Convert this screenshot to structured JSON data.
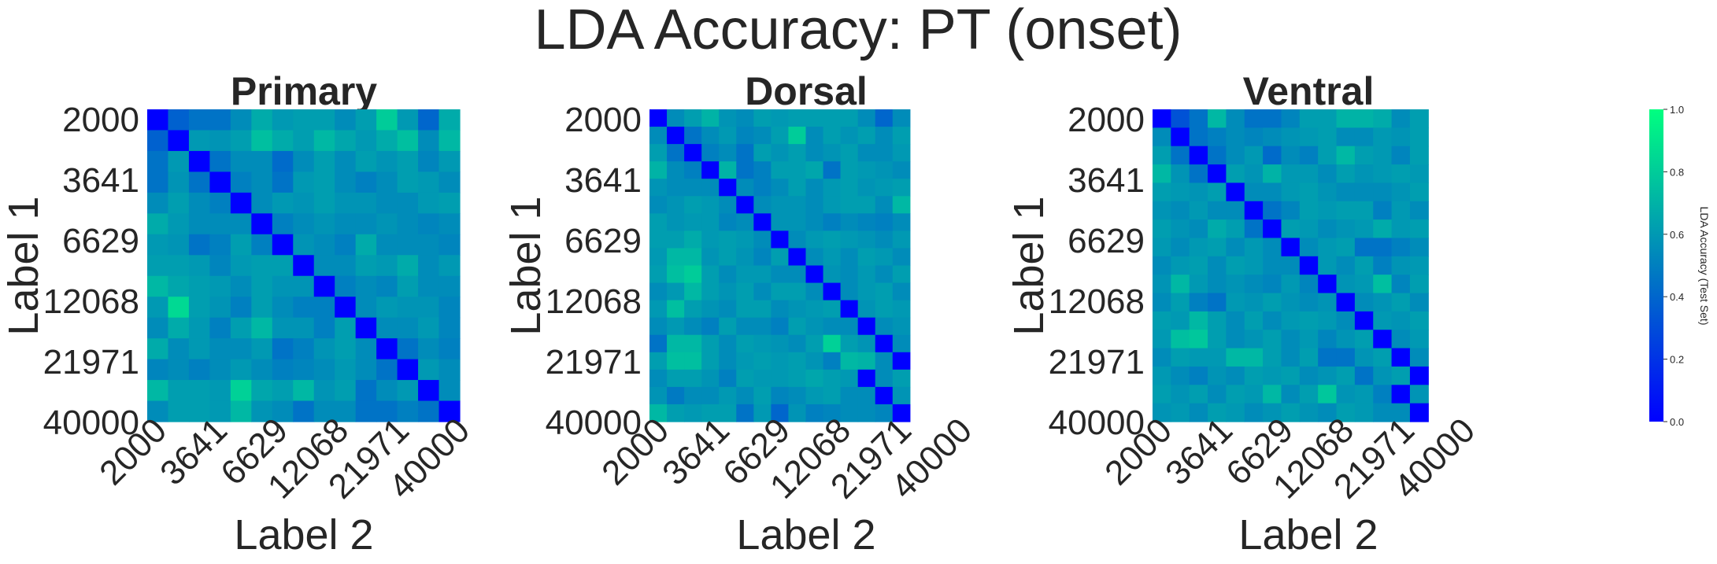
{
  "title": "LDA Accuracy: PT (onset)",
  "colors": {
    "low": "#0000ff",
    "high": "#00ff80"
  },
  "chart_data": [
    {
      "type": "heatmap",
      "title": "Primary",
      "xlabel": "Label 2",
      "ylabel": "Label 1",
      "tick_labels": [
        "2000",
        "3641",
        "6629",
        "12068",
        "21971",
        "40000"
      ],
      "vmin": 0.0,
      "vmax": 1.0,
      "values": [
        [
          0.0,
          0.38,
          0.45,
          0.45,
          0.55,
          0.67,
          0.6,
          0.62,
          0.62,
          0.55,
          0.62,
          0.8,
          0.6,
          0.4,
          0.67
        ],
        [
          0.38,
          0.0,
          0.6,
          0.58,
          0.62,
          0.75,
          0.67,
          0.62,
          0.72,
          0.65,
          0.6,
          0.67,
          0.75,
          0.55,
          0.72
        ],
        [
          0.45,
          0.6,
          0.0,
          0.45,
          0.55,
          0.55,
          0.42,
          0.55,
          0.62,
          0.55,
          0.62,
          0.58,
          0.62,
          0.52,
          0.6
        ],
        [
          0.45,
          0.58,
          0.45,
          0.0,
          0.5,
          0.55,
          0.45,
          0.6,
          0.62,
          0.55,
          0.5,
          0.55,
          0.62,
          0.6,
          0.55
        ],
        [
          0.55,
          0.62,
          0.55,
          0.5,
          0.0,
          0.55,
          0.6,
          0.58,
          0.62,
          0.58,
          0.58,
          0.55,
          0.55,
          0.6,
          0.62
        ],
        [
          0.67,
          0.6,
          0.55,
          0.55,
          0.55,
          0.0,
          0.5,
          0.55,
          0.58,
          0.55,
          0.55,
          0.58,
          0.55,
          0.52,
          0.55
        ],
        [
          0.6,
          0.58,
          0.45,
          0.5,
          0.62,
          0.5,
          0.0,
          0.58,
          0.55,
          0.5,
          0.67,
          0.55,
          0.55,
          0.55,
          0.52
        ],
        [
          0.62,
          0.62,
          0.6,
          0.52,
          0.6,
          0.62,
          0.62,
          0.0,
          0.55,
          0.55,
          0.62,
          0.6,
          0.67,
          0.55,
          0.6
        ],
        [
          0.72,
          0.65,
          0.62,
          0.6,
          0.55,
          0.62,
          0.58,
          0.58,
          0.0,
          0.5,
          0.55,
          0.52,
          0.62,
          0.55,
          0.55
        ],
        [
          0.6,
          0.85,
          0.62,
          0.58,
          0.5,
          0.62,
          0.55,
          0.5,
          0.5,
          0.0,
          0.55,
          0.6,
          0.58,
          0.58,
          0.52
        ],
        [
          0.55,
          0.67,
          0.6,
          0.5,
          0.62,
          0.72,
          0.58,
          0.58,
          0.5,
          0.62,
          0.0,
          0.55,
          0.55,
          0.6,
          0.52
        ],
        [
          0.67,
          0.55,
          0.6,
          0.55,
          0.55,
          0.6,
          0.45,
          0.5,
          0.58,
          0.62,
          0.55,
          0.0,
          0.45,
          0.55,
          0.5
        ],
        [
          0.52,
          0.55,
          0.5,
          0.55,
          0.6,
          0.55,
          0.5,
          0.52,
          0.55,
          0.6,
          0.55,
          0.45,
          0.0,
          0.6,
          0.55
        ],
        [
          0.72,
          0.62,
          0.62,
          0.6,
          0.82,
          0.65,
          0.62,
          0.72,
          0.58,
          0.62,
          0.45,
          0.55,
          0.6,
          0.0,
          0.55
        ],
        [
          0.55,
          0.62,
          0.62,
          0.6,
          0.72,
          0.58,
          0.55,
          0.45,
          0.55,
          0.55,
          0.45,
          0.45,
          0.5,
          0.45,
          0.0
        ]
      ]
    },
    {
      "type": "heatmap",
      "title": "Dorsal",
      "xlabel": "Label 2",
      "ylabel": "Label 1",
      "tick_labels": [
        "2000",
        "3641",
        "6629",
        "12068",
        "21971",
        "40000"
      ],
      "vmin": 0.0,
      "vmax": 1.0,
      "values": [
        [
          0.0,
          0.55,
          0.62,
          0.7,
          0.58,
          0.55,
          0.62,
          0.6,
          0.62,
          0.62,
          0.62,
          0.62,
          0.55,
          0.4,
          0.55
        ],
        [
          0.55,
          0.0,
          0.45,
          0.55,
          0.6,
          0.52,
          0.55,
          0.62,
          0.8,
          0.55,
          0.62,
          0.58,
          0.62,
          0.55,
          0.62
        ],
        [
          0.62,
          0.45,
          0.0,
          0.5,
          0.55,
          0.45,
          0.62,
          0.58,
          0.62,
          0.55,
          0.58,
          0.62,
          0.55,
          0.55,
          0.6
        ],
        [
          0.7,
          0.55,
          0.5,
          0.0,
          0.7,
          0.45,
          0.5,
          0.62,
          0.62,
          0.65,
          0.45,
          0.62,
          0.6,
          0.58,
          0.55
        ],
        [
          0.58,
          0.55,
          0.55,
          0.55,
          0.0,
          0.55,
          0.5,
          0.55,
          0.62,
          0.55,
          0.6,
          0.62,
          0.58,
          0.6,
          0.62
        ],
        [
          0.55,
          0.58,
          0.62,
          0.6,
          0.55,
          0.0,
          0.55,
          0.58,
          0.58,
          0.55,
          0.6,
          0.62,
          0.62,
          0.55,
          0.72
        ],
        [
          0.62,
          0.58,
          0.6,
          0.6,
          0.52,
          0.55,
          0.0,
          0.58,
          0.58,
          0.55,
          0.5,
          0.55,
          0.52,
          0.5,
          0.55
        ],
        [
          0.62,
          0.62,
          0.67,
          0.6,
          0.62,
          0.6,
          0.55,
          0.0,
          0.55,
          0.6,
          0.62,
          0.6,
          0.58,
          0.55,
          0.6
        ],
        [
          0.6,
          0.72,
          0.72,
          0.58,
          0.62,
          0.58,
          0.52,
          0.62,
          0.0,
          0.55,
          0.6,
          0.55,
          0.62,
          0.6,
          0.55
        ],
        [
          0.62,
          0.75,
          0.8,
          0.62,
          0.55,
          0.6,
          0.6,
          0.55,
          0.55,
          0.0,
          0.58,
          0.55,
          0.6,
          0.55,
          0.62
        ],
        [
          0.55,
          0.6,
          0.72,
          0.62,
          0.58,
          0.62,
          0.55,
          0.62,
          0.62,
          0.55,
          0.0,
          0.55,
          0.6,
          0.62,
          0.55
        ],
        [
          0.6,
          0.75,
          0.62,
          0.58,
          0.55,
          0.62,
          0.62,
          0.55,
          0.58,
          0.6,
          0.62,
          0.0,
          0.58,
          0.62,
          0.6
        ],
        [
          0.55,
          0.6,
          0.55,
          0.5,
          0.62,
          0.55,
          0.55,
          0.5,
          0.62,
          0.58,
          0.55,
          0.55,
          0.0,
          0.55,
          0.58
        ],
        [
          0.45,
          0.72,
          0.72,
          0.62,
          0.55,
          0.62,
          0.6,
          0.58,
          0.55,
          0.62,
          0.82,
          0.62,
          0.58,
          0.0,
          0.55
        ],
        [
          0.62,
          0.75,
          0.75,
          0.62,
          0.55,
          0.6,
          0.62,
          0.6,
          0.62,
          0.58,
          0.5,
          0.72,
          0.7,
          0.55,
          0.0
        ],
        [
          0.55,
          0.62,
          0.62,
          0.58,
          0.5,
          0.62,
          0.6,
          0.6,
          0.62,
          0.65,
          0.62,
          0.6,
          0.0,
          0.55,
          0.62
        ],
        [
          0.58,
          0.48,
          0.55,
          0.55,
          0.6,
          0.55,
          0.62,
          0.52,
          0.55,
          0.6,
          0.62,
          0.55,
          0.55,
          0.0,
          0.58
        ],
        [
          0.72,
          0.62,
          0.6,
          0.62,
          0.62,
          0.45,
          0.6,
          0.4,
          0.58,
          0.5,
          0.52,
          0.55,
          0.55,
          0.52,
          0.0
        ]
      ]
    },
    {
      "type": "heatmap",
      "title": "Ventral",
      "xlabel": "Label 2",
      "ylabel": "Label 1",
      "tick_labels": [
        "2000",
        "3641",
        "6629",
        "12068",
        "21971",
        "40000"
      ],
      "vmin": 0.0,
      "vmax": 1.0,
      "values": [
        [
          0.0,
          0.32,
          0.45,
          0.72,
          0.55,
          0.45,
          0.45,
          0.52,
          0.62,
          0.62,
          0.7,
          0.7,
          0.67,
          0.55,
          0.62
        ],
        [
          0.55,
          0.0,
          0.45,
          0.5,
          0.55,
          0.52,
          0.55,
          0.58,
          0.6,
          0.62,
          0.55,
          0.55,
          0.6,
          0.58,
          0.62
        ],
        [
          0.62,
          0.45,
          0.0,
          0.45,
          0.55,
          0.6,
          0.42,
          0.55,
          0.5,
          0.62,
          0.72,
          0.62,
          0.6,
          0.52,
          0.62
        ],
        [
          0.72,
          0.58,
          0.45,
          0.0,
          0.62,
          0.58,
          0.7,
          0.6,
          0.6,
          0.55,
          0.62,
          0.58,
          0.6,
          0.62,
          0.6
        ],
        [
          0.62,
          0.6,
          0.58,
          0.62,
          0.0,
          0.55,
          0.55,
          0.6,
          0.62,
          0.58,
          0.55,
          0.55,
          0.55,
          0.58,
          0.62
        ],
        [
          0.58,
          0.55,
          0.6,
          0.55,
          0.55,
          0.0,
          0.45,
          0.52,
          0.62,
          0.6,
          0.62,
          0.62,
          0.5,
          0.6,
          0.55
        ],
        [
          0.62,
          0.58,
          0.55,
          0.67,
          0.62,
          0.45,
          0.0,
          0.62,
          0.6,
          0.55,
          0.58,
          0.6,
          0.67,
          0.6,
          0.62
        ],
        [
          0.6,
          0.55,
          0.6,
          0.62,
          0.55,
          0.6,
          0.55,
          0.0,
          0.55,
          0.6,
          0.62,
          0.45,
          0.45,
          0.5,
          0.55
        ],
        [
          0.55,
          0.6,
          0.62,
          0.55,
          0.62,
          0.6,
          0.55,
          0.55,
          0.0,
          0.6,
          0.55,
          0.62,
          0.5,
          0.58,
          0.6
        ],
        [
          0.58,
          0.72,
          0.6,
          0.55,
          0.58,
          0.55,
          0.52,
          0.6,
          0.52,
          0.0,
          0.58,
          0.6,
          0.75,
          0.52,
          0.62
        ],
        [
          0.55,
          0.62,
          0.5,
          0.45,
          0.6,
          0.58,
          0.62,
          0.58,
          0.55,
          0.58,
          0.0,
          0.55,
          0.58,
          0.62,
          0.55
        ],
        [
          0.62,
          0.6,
          0.72,
          0.62,
          0.55,
          0.62,
          0.55,
          0.6,
          0.62,
          0.6,
          0.55,
          0.0,
          0.6,
          0.58,
          0.62
        ],
        [
          0.6,
          0.75,
          0.78,
          0.62,
          0.55,
          0.58,
          0.62,
          0.55,
          0.6,
          0.52,
          0.58,
          0.62,
          0.0,
          0.55,
          0.6
        ],
        [
          0.55,
          0.62,
          0.6,
          0.6,
          0.72,
          0.72,
          0.62,
          0.55,
          0.62,
          0.45,
          0.45,
          0.58,
          0.62,
          0.0,
          0.55
        ],
        [
          0.6,
          0.55,
          0.5,
          0.58,
          0.55,
          0.62,
          0.6,
          0.62,
          0.55,
          0.58,
          0.62,
          0.45,
          0.58,
          0.62,
          0.0
        ],
        [
          0.62,
          0.58,
          0.62,
          0.55,
          0.62,
          0.6,
          0.72,
          0.55,
          0.62,
          0.78,
          0.58,
          0.6,
          0.5,
          0.0,
          0.58
        ],
        [
          0.58,
          0.6,
          0.55,
          0.62,
          0.6,
          0.55,
          0.58,
          0.62,
          0.58,
          0.55,
          0.62,
          0.6,
          0.55,
          0.55,
          0.0
        ]
      ]
    }
  ],
  "colorbar": {
    "label": "LDA Accuracy (Test Set)",
    "ticks": [
      "0.0",
      "0.2",
      "0.4",
      "0.6",
      "0.8",
      "1.0"
    ]
  }
}
